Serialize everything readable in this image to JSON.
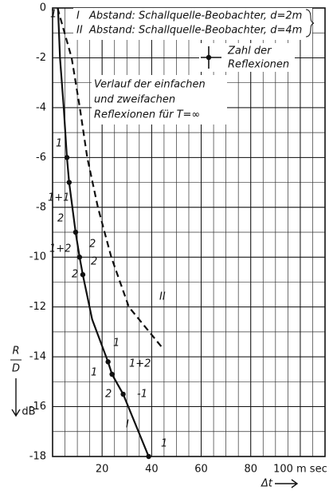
{
  "chart_data": {
    "type": "line",
    "x_label": "Δt",
    "y_label": "R",
    "y_label_denominator": "D",
    "y_unit": "dB",
    "xlim": [
      0,
      110
    ],
    "ylim": [
      -18,
      0
    ],
    "xticks": [
      20,
      40,
      60,
      80,
      {
        "value": 100,
        "label": "100 m sec"
      }
    ],
    "yticks": [
      0,
      -2,
      -4,
      -6,
      -8,
      -10,
      -12,
      -14,
      -16,
      -18
    ],
    "grid": true,
    "minor_grid": {
      "x": 5,
      "y": 1
    },
    "series": [
      {
        "name": "I",
        "color": "#111111",
        "dash": false,
        "x": [
          2.2,
          3,
          4.5,
          5.8,
          6.7,
          9.3,
          10.9,
          12.2,
          16,
          22.4,
          24,
          28.5,
          38.8
        ],
        "values": [
          0,
          -2,
          -4,
          -6,
          -7,
          -9,
          -10,
          -10.7,
          -12.5,
          -14.2,
          -14.7,
          -15.5,
          -18
        ]
      },
      {
        "name": "II",
        "color": "#111111",
        "dash": true,
        "x": [
          2,
          7.7,
          11,
          14,
          18.3,
          23.7,
          30.8,
          44
        ],
        "values": [
          0,
          -2,
          -4,
          -6,
          -8,
          -10,
          -12,
          -13.6
        ]
      }
    ],
    "markers": {
      "name": "Zahl der Reflexionen",
      "x": [
        5.8,
        6.7,
        9.3,
        10.9,
        12.2,
        22.4,
        24,
        28.5,
        38.8
      ],
      "values": [
        -6,
        -7,
        -9,
        -10,
        -10.7,
        -14.2,
        -14.7,
        -15.5,
        -18
      ]
    },
    "legend": [
      "Abstand: Schallquelle-Beobachter, d=2m",
      "Abstand: Schallquelle-Beobachter, d=4m"
    ],
    "marker_legend": [
      "Zahl der",
      "Reflexionen"
    ],
    "note": [
      "Verlauf der einfachen",
      "und zweifachen",
      "Reflexionen für T=∞"
    ],
    "annotations": [
      "1",
      "1",
      "1+1",
      "2",
      "1+2",
      "2",
      "2",
      "2",
      "1",
      "1+2",
      "1",
      "2",
      "-1",
      "1"
    ]
  }
}
